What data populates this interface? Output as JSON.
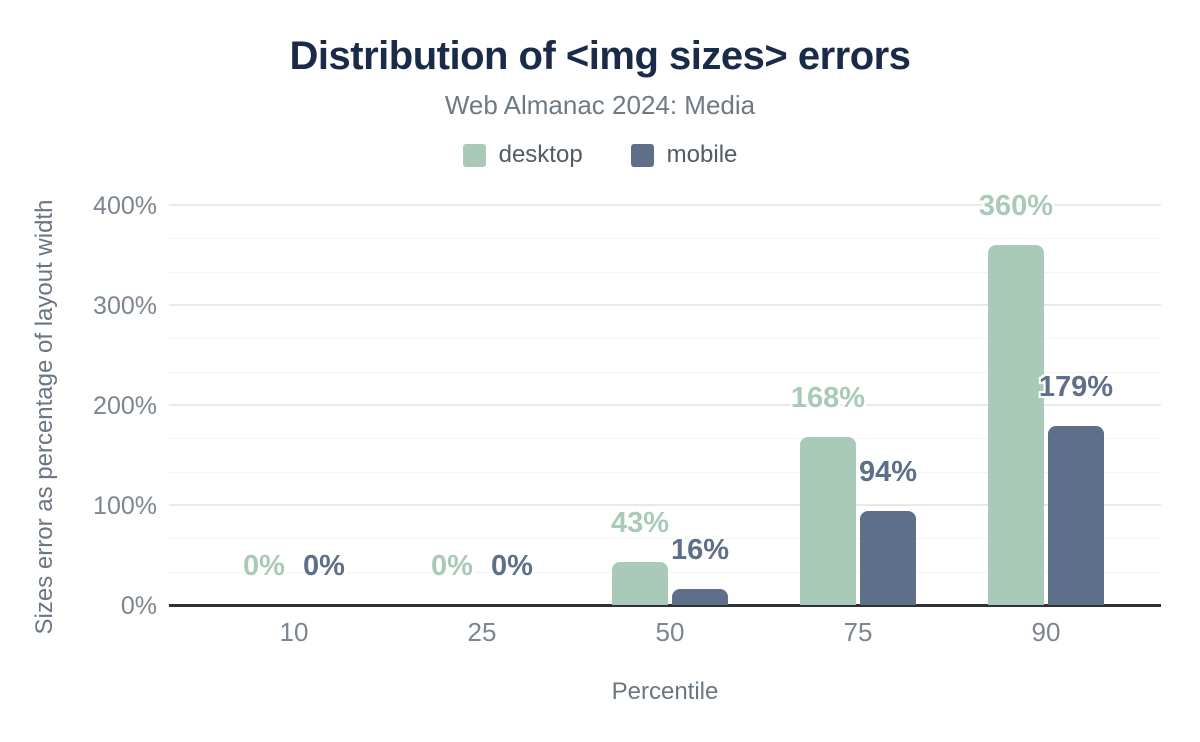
{
  "title": "Distribution of <img sizes> errors",
  "subtitle": "Web Almanac 2024: Media",
  "legend": {
    "items": [
      {
        "label": "desktop",
        "color": "#a9c9b9"
      },
      {
        "label": "mobile",
        "color": "#5e6f8a"
      }
    ]
  },
  "colors": {
    "title": "#1a2b49",
    "subtitle_text": "#6e7a83",
    "axis_line": "#2f3237",
    "tick_text": "#7d868e",
    "gridline_major": "#e9e9e9",
    "gridline_minor": "#f4f4f4",
    "desktop": "#a9c9b9",
    "mobile": "#5e6f8a"
  },
  "chart_data": {
    "type": "bar",
    "title": "Distribution of <img sizes> errors",
    "subtitle": "Web Almanac 2024: Media",
    "categories": [
      "10",
      "25",
      "50",
      "75",
      "90"
    ],
    "series": [
      {
        "name": "desktop",
        "color": "#a9c9b9",
        "values": [
          0,
          0,
          43,
          168,
          360
        ],
        "labels": [
          "0%",
          "0%",
          "43%",
          "168%",
          "360%"
        ]
      },
      {
        "name": "mobile",
        "color": "#5e6f8a",
        "values": [
          0,
          0,
          16,
          94,
          179
        ],
        "labels": [
          "0%",
          "0%",
          "16%",
          "94%",
          "179%"
        ]
      }
    ],
    "xlabel": "Percentile",
    "ylabel": "Sizes error as percentage of layout width",
    "ylim": [
      0,
      400
    ],
    "y_ticks": [
      "0%",
      "100%",
      "200%",
      "300%",
      "400%"
    ],
    "y_major_step": 100,
    "y_minor_per_major": 2,
    "grid": true,
    "legend_position": "top",
    "bar_value_labels_shown": true
  }
}
